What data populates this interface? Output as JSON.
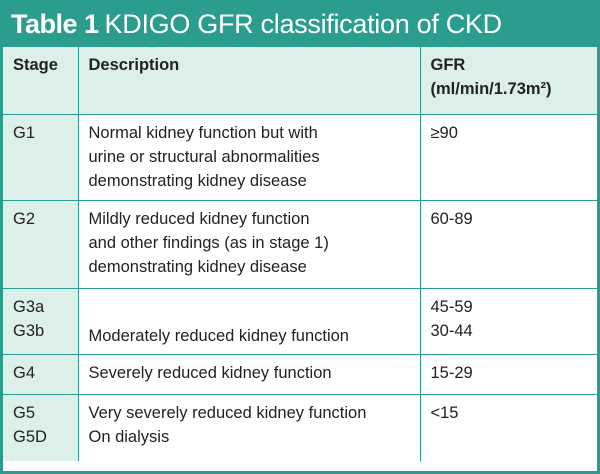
{
  "title": {
    "number": "Table 1",
    "text": "KDIGO GFR classification of CKD"
  },
  "headers": {
    "stage": "Stage",
    "description": "Description",
    "gfr_line1": "GFR",
    "gfr_line2": "(ml/min/1.73m²)"
  },
  "rows": [
    {
      "stage": [
        "G1"
      ],
      "description": [
        "Normal kidney function but with",
        "urine or structural abnormalities",
        "demonstrating kidney disease"
      ],
      "gfr": [
        "≥90"
      ]
    },
    {
      "stage": [
        "G2"
      ],
      "description": [
        "Mildly reduced kidney function",
        "and other findings (as in stage 1)",
        "demonstrating kidney disease"
      ],
      "gfr": [
        "60-89"
      ]
    },
    {
      "stage": [
        "G3a",
        "G3b"
      ],
      "description": [
        "Moderately reduced kidney function"
      ],
      "gfr": [
        "45-59",
        "30-44"
      ]
    },
    {
      "stage": [
        "G4"
      ],
      "description": [
        "Severely reduced kidney function"
      ],
      "gfr": [
        "15-29"
      ]
    },
    {
      "stage": [
        "G5",
        "G5D"
      ],
      "description": [
        "Very severely reduced kidney function",
        "On dialysis"
      ],
      "gfr": [
        "<15"
      ]
    }
  ]
}
